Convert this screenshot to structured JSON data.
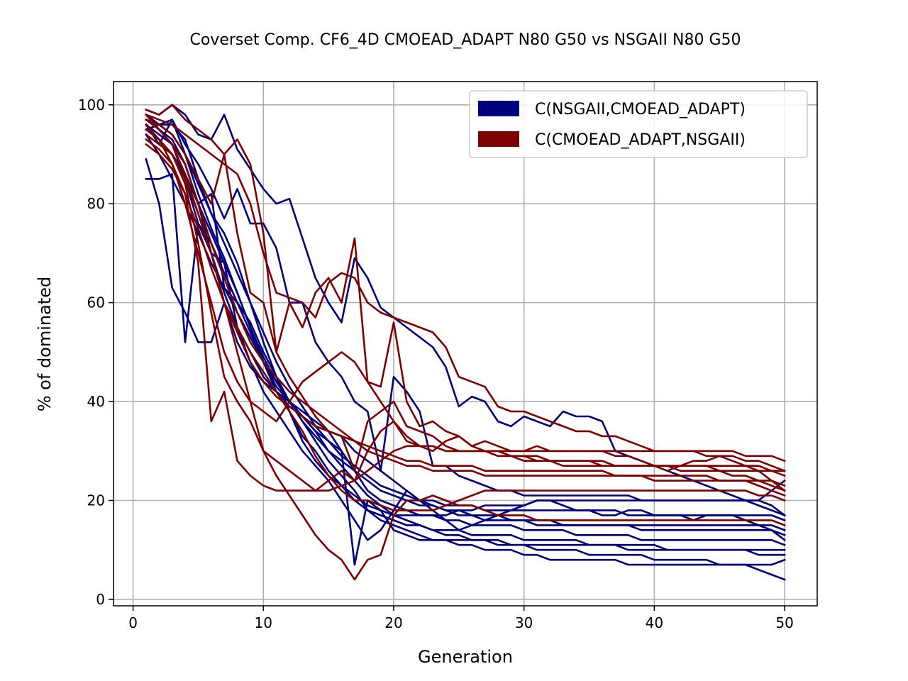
{
  "chart_data": {
    "type": "line",
    "title": "Coverset Comp. CF6_4D CMOEAD_ADAPT N80 G50 vs NSGAII N80 G50",
    "xlabel": "Generation",
    "ylabel": "% of dominated",
    "xlim": [
      -1.5,
      52.5
    ],
    "ylim": [
      -1.3,
      104.7
    ],
    "xticks": [
      0,
      10,
      20,
      30,
      40,
      50
    ],
    "yticks": [
      0,
      20,
      40,
      60,
      80,
      100
    ],
    "grid": true,
    "legend_position": "top-right",
    "legend": [
      {
        "label": "C(NSGAII,CMOEAD_ADAPT)",
        "color": "#00007f"
      },
      {
        "label": "C(CMOEAD_ADAPT,NSGAII)",
        "color": "#7f0000"
      }
    ],
    "x": [
      1,
      2,
      3,
      4,
      5,
      6,
      7,
      8,
      9,
      10,
      11,
      12,
      13,
      14,
      15,
      16,
      17,
      18,
      19,
      20,
      21,
      22,
      23,
      24,
      25,
      26,
      27,
      28,
      29,
      30,
      31,
      32,
      33,
      34,
      35,
      36,
      37,
      38,
      39,
      40,
      41,
      42,
      43,
      44,
      45,
      46,
      47,
      48,
      49,
      50
    ],
    "series": [
      {
        "group": "C(NSGAII,CMOEAD_ADAPT)",
        "color": "#00007f",
        "values": [
          98,
          95,
          92,
          88,
          80,
          70,
          62,
          55,
          48,
          42,
          38,
          34,
          30,
          27,
          24,
          20,
          16,
          12,
          14,
          18,
          22,
          20,
          18,
          16,
          14,
          15,
          16,
          17,
          18,
          19,
          20,
          20,
          19,
          18,
          18,
          17,
          17,
          18,
          18,
          17,
          17,
          17,
          16,
          17,
          17,
          17,
          16,
          15,
          14,
          12
        ]
      },
      {
        "group": "C(NSGAII,CMOEAD_ADAPT)",
        "color": "#00007f",
        "values": [
          96,
          94,
          92,
          85,
          76,
          72,
          66,
          60,
          54,
          48,
          44,
          40,
          36,
          32,
          28,
          25,
          22,
          18,
          16,
          15,
          14,
          13,
          12,
          12,
          11,
          11,
          10,
          10,
          10,
          9,
          9,
          8,
          8,
          8,
          8,
          8,
          8,
          7,
          7,
          7,
          7,
          7,
          7,
          7,
          7,
          7,
          7,
          7,
          7,
          8
        ]
      },
      {
        "group": "C(NSGAII,CMOEAD_ADAPT)",
        "color": "#00007f",
        "values": [
          95,
          96,
          97,
          90,
          82,
          75,
          69,
          62,
          55,
          48,
          42,
          38,
          33,
          30,
          26,
          23,
          20,
          18,
          17,
          16,
          15,
          15,
          14,
          14,
          14,
          13,
          13,
          13,
          13,
          12,
          12,
          12,
          12,
          12,
          11,
          11,
          11,
          11,
          11,
          11,
          10,
          10,
          10,
          10,
          10,
          10,
          10,
          9,
          9,
          9
        ]
      },
      {
        "group": "C(NSGAII,CMOEAD_ADAPT)",
        "color": "#00007f",
        "values": [
          89,
          80,
          63,
          58,
          52,
          52,
          60,
          52,
          47,
          44,
          42,
          39,
          37,
          35,
          34,
          30,
          26,
          22,
          20,
          19,
          18,
          17,
          17,
          16,
          16,
          15,
          15,
          15,
          15,
          14,
          14,
          14,
          14,
          13,
          13,
          13,
          13,
          13,
          12,
          12,
          12,
          12,
          12,
          12,
          12,
          12,
          12,
          12,
          12,
          11
        ]
      },
      {
        "group": "C(NSGAII,CMOEAD_ADAPT)",
        "color": "#00007f",
        "values": [
          85,
          85,
          86,
          52,
          76,
          70,
          68,
          55,
          50,
          45,
          42,
          40,
          37,
          34,
          30,
          27,
          24,
          21,
          19,
          17,
          16,
          15,
          14,
          13,
          13,
          12,
          12,
          11,
          11,
          11,
          10,
          10,
          10,
          10,
          9,
          9,
          9,
          9,
          9,
          8,
          8,
          8,
          8,
          8,
          7,
          7,
          7,
          6,
          5,
          4
        ]
      },
      {
        "group": "C(NSGAII,CMOEAD_ADAPT)",
        "color": "#00007f",
        "values": [
          97,
          96,
          96,
          93,
          85,
          78,
          74,
          68,
          60,
          52,
          45,
          38,
          32,
          28,
          25,
          23,
          21,
          19,
          18,
          17,
          17,
          17,
          17,
          17,
          18,
          18,
          19,
          19,
          19,
          19,
          20,
          20,
          20,
          20,
          20,
          20,
          20,
          20,
          20,
          20,
          20,
          20,
          20,
          20,
          20,
          20,
          20,
          20,
          19,
          17
        ]
      },
      {
        "group": "C(NSGAII,CMOEAD_ADAPT)",
        "color": "#00007f",
        "values": [
          94,
          90,
          85,
          80,
          74,
          68,
          63,
          58,
          53,
          48,
          43,
          40,
          37,
          34,
          32,
          30,
          7,
          20,
          18,
          14,
          13,
          12,
          12,
          12,
          12,
          12,
          12,
          12,
          11,
          11,
          11,
          11,
          11,
          11,
          11,
          11,
          11,
          10,
          10,
          10,
          10,
          10,
          10,
          10,
          10,
          10,
          10,
          10,
          10,
          10
        ]
      },
      {
        "group": "C(NSGAII,CMOEAD_ADAPT)",
        "color": "#00007f",
        "values": [
          99,
          98,
          100,
          98,
          94,
          93,
          98,
          91,
          87,
          83,
          80,
          81,
          73,
          65,
          60,
          56,
          69,
          65,
          59,
          57,
          55,
          53,
          51,
          47,
          39,
          41,
          40,
          36,
          35,
          37,
          36,
          35,
          38,
          37,
          37,
          36,
          30,
          29,
          28,
          27,
          26,
          25,
          24,
          23,
          22,
          21,
          20,
          20,
          22,
          24
        ]
      },
      {
        "group": "C(NSGAII,CMOEAD_ADAPT)",
        "color": "#00007f",
        "values": [
          96,
          92,
          97,
          92,
          88,
          83,
          77,
          83,
          76,
          76,
          71,
          60,
          60,
          52,
          48,
          45,
          40,
          38,
          26,
          45,
          42,
          38,
          27,
          27,
          25,
          24,
          23,
          22,
          22,
          21,
          21,
          21,
          21,
          21,
          21,
          21,
          21,
          21,
          20,
          20,
          20,
          20,
          20,
          20,
          20,
          20,
          20,
          19,
          18,
          17
        ]
      },
      {
        "group": "C(NSGAII,CMOEAD_ADAPT)",
        "color": "#00007f",
        "values": [
          97,
          95,
          93,
          88,
          80,
          82,
          63,
          60,
          56,
          50,
          45,
          40,
          38,
          36,
          34,
          33,
          30,
          28,
          26,
          24,
          22,
          20,
          19,
          18,
          17,
          17,
          16,
          16,
          16,
          16,
          15,
          15,
          15,
          15,
          15,
          15,
          15,
          15,
          15,
          15,
          15,
          15,
          15,
          15,
          15,
          15,
          15,
          15,
          15,
          14
        ]
      },
      {
        "group": "C(NSGAII,CMOEAD_ADAPT)",
        "color": "#00007f",
        "values": [
          95,
          93,
          90,
          86,
          80,
          74,
          68,
          62,
          55,
          49,
          44,
          40,
          36,
          33,
          30,
          28,
          26,
          24,
          22,
          21,
          20,
          19,
          19,
          18,
          18,
          17,
          17,
          17,
          16,
          16,
          16,
          16,
          15,
          15,
          15,
          15,
          15,
          15,
          14,
          14,
          14,
          14,
          14,
          14,
          14,
          14,
          14,
          14,
          14,
          13
        ]
      },
      {
        "group": "C(NSGAII,CMOEAD_ADAPT)",
        "color": "#00007f",
        "values": [
          98,
          96,
          94,
          90,
          84,
          78,
          72,
          66,
          60,
          54,
          48,
          43,
          39,
          35,
          32,
          29,
          27,
          25,
          23,
          22,
          21,
          20,
          20,
          19,
          19,
          19,
          18,
          18,
          18,
          18,
          18,
          18,
          18,
          18,
          18,
          18,
          18,
          17,
          17,
          17,
          17,
          17,
          17,
          17,
          17,
          17,
          17,
          17,
          17,
          16
        ]
      },
      {
        "group": "C(CMOEAD_ADAPT,NSGAII)",
        "color": "#7f0000",
        "values": [
          99,
          98,
          100,
          97,
          95,
          93,
          90,
          93,
          88,
          74,
          50,
          60,
          55,
          62,
          65,
          60,
          73,
          44,
          43,
          56,
          40,
          35,
          36,
          34,
          33,
          31,
          32,
          31,
          30,
          30,
          31,
          30,
          30,
          30,
          30,
          30,
          29,
          29,
          28,
          27,
          26,
          27,
          28,
          28,
          29,
          28,
          27,
          26,
          24,
          22
        ]
      },
      {
        "group": "C(CMOEAD_ADAPT,NSGAII)",
        "color": "#7f0000",
        "values": [
          97,
          96,
          94,
          90,
          85,
          80,
          90,
          74,
          62,
          60,
          50,
          45,
          41,
          37,
          34,
          33,
          26,
          36,
          38,
          40,
          35,
          34,
          33,
          31,
          30,
          30,
          30,
          29,
          29,
          29,
          28,
          28,
          28,
          28,
          28,
          27,
          27,
          27,
          27,
          27,
          27,
          26,
          26,
          26,
          26,
          25,
          25,
          24,
          23,
          22
        ]
      },
      {
        "group": "C(CMOEAD_ADAPT,NSGAII)",
        "color": "#7f0000",
        "values": [
          98,
          95,
          92,
          86,
          78,
          70,
          60,
          55,
          50,
          46,
          42,
          38,
          34,
          29,
          25,
          22,
          20,
          20,
          19,
          18,
          18,
          18,
          18,
          19,
          20,
          21,
          22,
          22,
          22,
          22,
          22,
          22,
          22,
          22,
          22,
          22,
          22,
          22,
          22,
          22,
          22,
          22,
          22,
          22,
          22,
          22,
          22,
          21,
          21,
          20
        ]
      },
      {
        "group": "C(CMOEAD_ADAPT,NSGAII)",
        "color": "#7f0000",
        "values": [
          95,
          93,
          90,
          85,
          78,
          70,
          60,
          50,
          40,
          30,
          25,
          21,
          17,
          13,
          10,
          8,
          4,
          8,
          9,
          17,
          20,
          20,
          21,
          20,
          19,
          19,
          18,
          17,
          17,
          17,
          16,
          16,
          16,
          16,
          16,
          16,
          16,
          16,
          16,
          16,
          16,
          16,
          16,
          16,
          16,
          16,
          16,
          16,
          16,
          15
        ]
      },
      {
        "group": "C(CMOEAD_ADAPT,NSGAII)",
        "color": "#7f0000",
        "values": [
          94,
          92,
          90,
          84,
          72,
          58,
          45,
          40,
          36,
          30,
          28,
          26,
          24,
          22,
          24,
          26,
          24,
          30,
          34,
          36,
          33,
          31,
          30,
          32,
          33,
          31,
          30,
          30,
          29,
          28,
          28,
          28,
          27,
          27,
          27,
          27,
          27,
          27,
          27,
          27,
          27,
          27,
          27,
          27,
          27,
          27,
          27,
          27,
          26,
          25
        ]
      },
      {
        "group": "C(CMOEAD_ADAPT,NSGAII)",
        "color": "#7f0000",
        "values": [
          96,
          93,
          88,
          80,
          70,
          60,
          50,
          44,
          40,
          38,
          36,
          40,
          44,
          46,
          48,
          50,
          48,
          44,
          40,
          36,
          32,
          31,
          31,
          30,
          30,
          30,
          30,
          30,
          30,
          30,
          30,
          30,
          30,
          30,
          30,
          30,
          30,
          30,
          30,
          30,
          30,
          30,
          30,
          30,
          30,
          30,
          29,
          29,
          29,
          28
        ]
      },
      {
        "group": "C(CMOEAD_ADAPT,NSGAII)",
        "color": "#7f0000",
        "values": [
          98,
          97,
          96,
          94,
          92,
          90,
          88,
          86,
          80,
          70,
          62,
          61,
          60,
          57,
          64,
          66,
          65,
          60,
          58,
          57,
          56,
          55,
          54,
          51,
          45,
          44,
          43,
          39,
          38,
          38,
          37,
          36,
          35,
          34,
          34,
          33,
          33,
          32,
          31,
          30,
          30,
          30,
          30,
          29,
          29,
          29,
          28,
          28,
          27,
          26
        ]
      },
      {
        "group": "C(CMOEAD_ADAPT,NSGAII)",
        "color": "#7f0000",
        "values": [
          93,
          91,
          88,
          82,
          68,
          36,
          42,
          28,
          25,
          23,
          22,
          22,
          22,
          22,
          22,
          23,
          24,
          26,
          28,
          30,
          31,
          31,
          31,
          30,
          30,
          30,
          30,
          30,
          29,
          29,
          29,
          28,
          28,
          28,
          28,
          28,
          27,
          27,
          27,
          27,
          27,
          27,
          27,
          27,
          26,
          26,
          26,
          26,
          26,
          26
        ]
      },
      {
        "group": "C(CMOEAD_ADAPT,NSGAII)",
        "color": "#7f0000",
        "values": [
          97,
          95,
          92,
          88,
          80,
          72,
          65,
          58,
          52,
          48,
          45,
          42,
          40,
          38,
          36,
          34,
          32,
          30,
          29,
          28,
          27,
          27,
          26,
          26,
          26,
          26,
          25,
          25,
          25,
          25,
          25,
          25,
          25,
          25,
          25,
          25,
          25,
          25,
          25,
          24,
          24,
          24,
          24,
          24,
          24,
          24,
          24,
          24,
          24,
          23
        ]
      },
      {
        "group": "C(CMOEAD_ADAPT,NSGAII)",
        "color": "#7f0000",
        "values": [
          92,
          90,
          87,
          82,
          75,
          67,
          60,
          54,
          48,
          44,
          41,
          39,
          37,
          35,
          34,
          33,
          32,
          31,
          30,
          29,
          28,
          28,
          27,
          27,
          27,
          27,
          26,
          26,
          26,
          26,
          26,
          26,
          26,
          26,
          26,
          26,
          25,
          25,
          25,
          25,
          25,
          25,
          25,
          25,
          24,
          24,
          24,
          23,
          22,
          21
        ]
      }
    ]
  }
}
